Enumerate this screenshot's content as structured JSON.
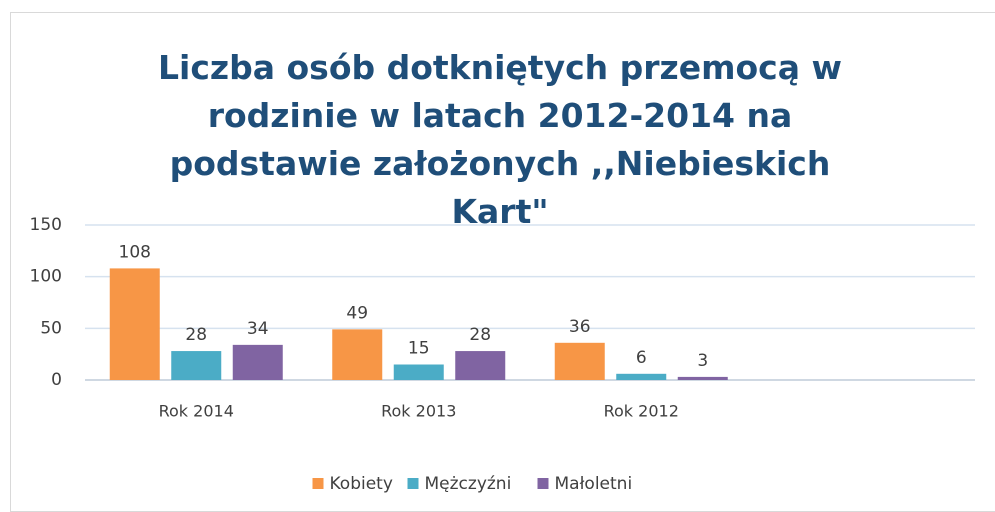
{
  "chart_data": {
    "type": "bar",
    "title": "Liczba osób dotkniętych przemocą w rodzinie w latach 2012-2014 na podstawie założonych ,,Niebieskich Kart\"",
    "categories": [
      "Rok 2014",
      "Rok 2013",
      "Rok 2012",
      null
    ],
    "series": [
      {
        "name": "Kobiety",
        "color": "#f79646",
        "values": [
          108,
          49,
          36,
          null
        ]
      },
      {
        "name": "Mężczyźni",
        "color": "#4bacc6",
        "values": [
          28,
          15,
          6,
          null
        ]
      },
      {
        "name": "Małoletni",
        "color": "#8064a2",
        "values": [
          34,
          28,
          3,
          null
        ]
      }
    ],
    "ylim": [
      0,
      150
    ],
    "yticks": [
      0,
      50,
      100,
      150
    ],
    "grid": true,
    "legend": "bottom"
  }
}
